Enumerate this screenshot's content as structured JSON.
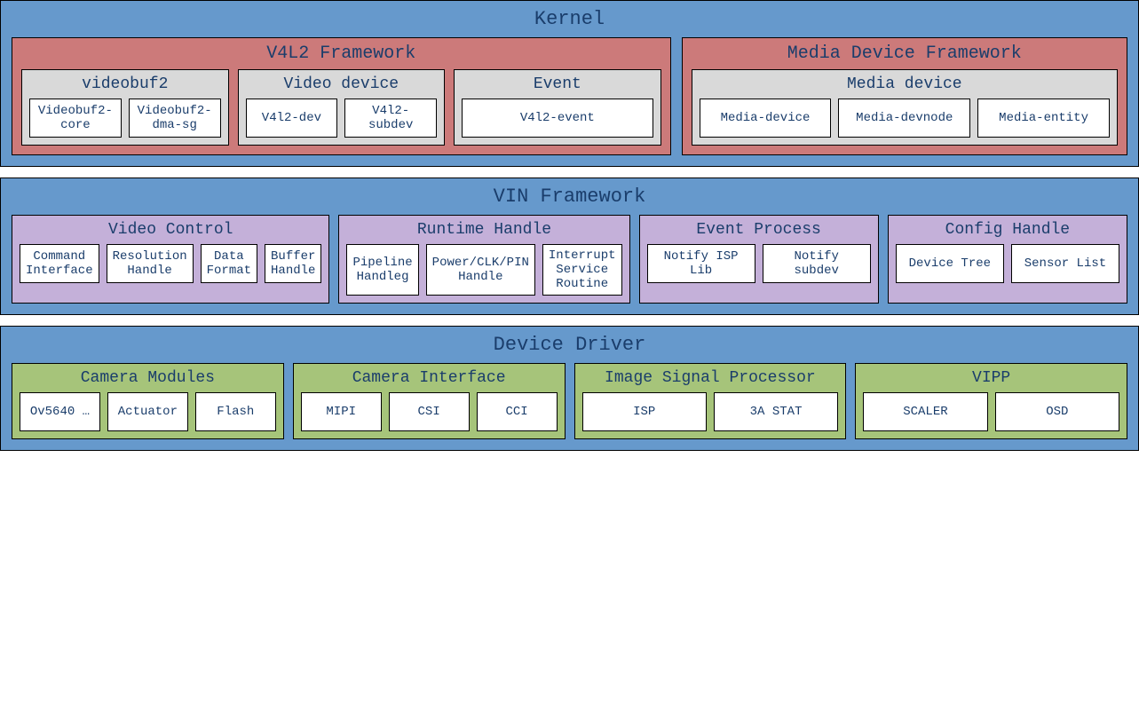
{
  "type": "block-diagram",
  "colors": {
    "layer_blue": "#6699cc",
    "framework_red": "#cc7a7a",
    "group_gray": "#d9d9d9",
    "group_purple": "#c4b0d9",
    "group_green": "#a6c47a",
    "item_white": "#ffffff",
    "text_color": "#1a3d6b",
    "border_color": "#000000"
  },
  "layers": [
    {
      "id": "kernel",
      "title": "Kernel",
      "bg": "#6699cc",
      "frameworks": [
        {
          "id": "v4l2",
          "title": "V4L2 Framework",
          "bg": "#cc7a7a",
          "flex": 3,
          "groups": [
            {
              "id": "videobuf2",
              "title": "videobuf2",
              "bg": "#d9d9d9",
              "items": [
                "Videobuf2-core",
                "Videobuf2-dma-sg"
              ]
            },
            {
              "id": "video-device",
              "title": "Video device",
              "bg": "#d9d9d9",
              "items": [
                "V4l2-dev",
                "V4l2-subdev"
              ]
            },
            {
              "id": "event",
              "title": "Event",
              "bg": "#d9d9d9",
              "items": [
                "V4l2-event"
              ]
            }
          ]
        },
        {
          "id": "media-framework",
          "title": "Media Device Framework",
          "bg": "#cc7a7a",
          "flex": 2,
          "groups": [
            {
              "id": "media-device",
              "title": "Media device",
              "bg": "#d9d9d9",
              "items": [
                "Media-device",
                "Media-devnode",
                "Media-entity"
              ]
            }
          ]
        }
      ]
    },
    {
      "id": "vin",
      "title": "VIN Framework",
      "bg": "#6699cc",
      "groups": [
        {
          "id": "video-control",
          "title": "Video Control",
          "bg": "#c4b0d9",
          "items": [
            "Command Interface",
            "Resolution Handle",
            "Data Format",
            "Buffer Handle"
          ]
        },
        {
          "id": "runtime-handle",
          "title": "Runtime Handle",
          "bg": "#c4b0d9",
          "items": [
            "Pipeline Handleg",
            "Power/CLK/PIN Handle",
            "Interrupt Service Routine"
          ]
        },
        {
          "id": "event-process",
          "title": "Event Process",
          "bg": "#c4b0d9",
          "items": [
            "Notify ISP Lib",
            "Notify subdev"
          ]
        },
        {
          "id": "config-handle",
          "title": "Config Handle",
          "bg": "#c4b0d9",
          "items": [
            "Device Tree",
            "Sensor List"
          ]
        }
      ]
    },
    {
      "id": "device-driver",
      "title": "Device Driver",
      "bg": "#6699cc",
      "groups": [
        {
          "id": "camera-modules",
          "title": "Camera Modules",
          "bg": "#a6c47a",
          "items": [
            "Ov5640 …",
            "Actuator",
            "Flash"
          ]
        },
        {
          "id": "camera-interface",
          "title": "Camera Interface",
          "bg": "#a6c47a",
          "items": [
            "MIPI",
            "CSI",
            "CCI"
          ]
        },
        {
          "id": "isp",
          "title": "Image Signal Processor",
          "bg": "#a6c47a",
          "items": [
            "ISP",
            "3A STAT"
          ]
        },
        {
          "id": "vipp",
          "title": "VIPP",
          "bg": "#a6c47a",
          "items": [
            "SCALER",
            "OSD"
          ]
        }
      ]
    }
  ]
}
